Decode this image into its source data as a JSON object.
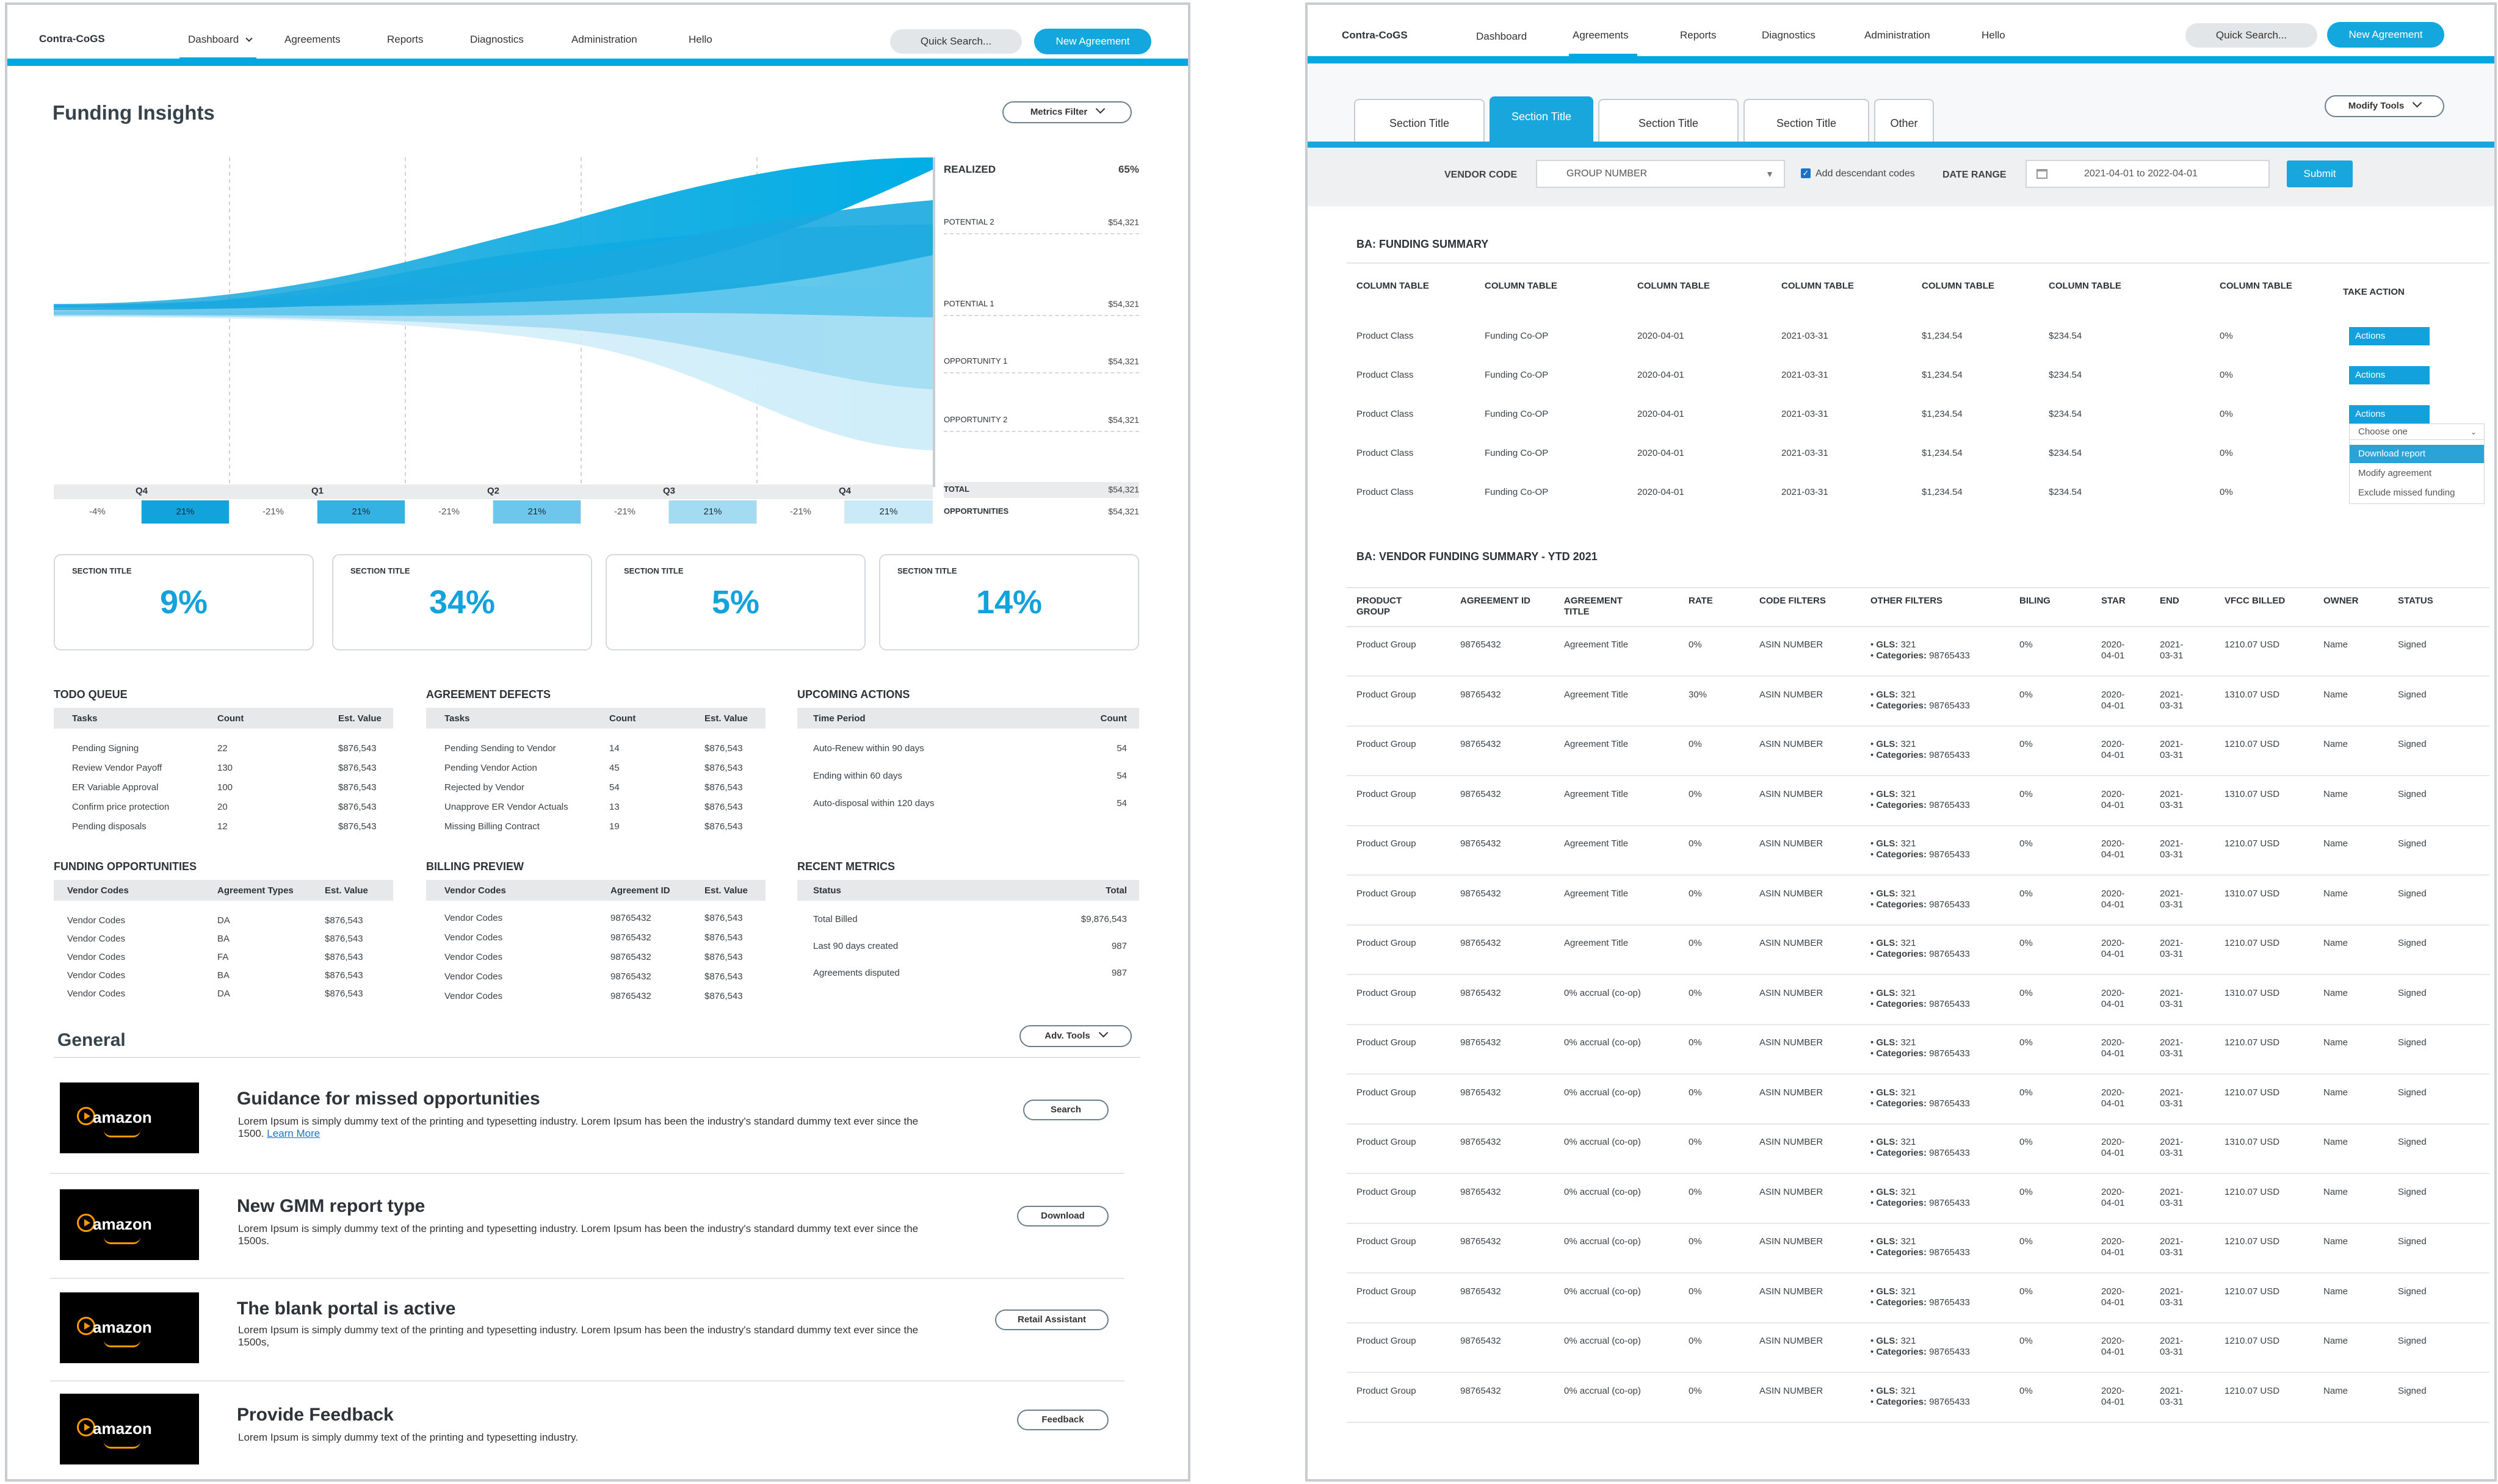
{
  "left": {
    "nav": {
      "brand": "Contra-CoGS",
      "items": [
        "Dashboard",
        "Agreements",
        "Reports",
        "Diagnostics",
        "Administration",
        "Hello"
      ],
      "search": "Quick Search...",
      "new_agreement": "New Agreement"
    },
    "page_title": "Funding Insights",
    "metrics_filter": "Metrics Filter",
    "chart_data": {
      "type": "area",
      "title": "",
      "x": [
        "Q4",
        "Q1",
        "Q2",
        "Q3",
        "Q4"
      ],
      "series": [
        {
          "name": "REALIZED",
          "value": "65%"
        },
        {
          "name": "POTENTIAL 2",
          "value": "$54,321"
        },
        {
          "name": "POTENTIAL 1",
          "value": "$54,321"
        },
        {
          "name": "OPPORTUNITY 1",
          "value": "$54,321"
        },
        {
          "name": "OPPORTUNITY 2",
          "value": "$54,321"
        }
      ],
      "totals": [
        {
          "name": "TOTAL",
          "value": "$54,321"
        },
        {
          "name": "OPPORTUNITIES",
          "value": "$54,321"
        }
      ],
      "cells": [
        "-4%",
        "21%",
        "-21%",
        "21%",
        "-21%",
        "21%",
        "-21%",
        "21%",
        "-21%",
        "21%"
      ]
    },
    "cards": [
      {
        "label": "SECTION TITLE",
        "value": "9%"
      },
      {
        "label": "SECTION TITLE",
        "value": "34%"
      },
      {
        "label": "SECTION TITLE",
        "value": "5%"
      },
      {
        "label": "SECTION TITLE",
        "value": "14%"
      }
    ],
    "todo": {
      "title": "TODO QUEUE",
      "headers": [
        "Tasks",
        "Count",
        "Est. Value"
      ],
      "rows": [
        [
          "Pending Signing",
          "22",
          "$876,543"
        ],
        [
          "Review Vendor Payoff",
          "130",
          "$876,543"
        ],
        [
          "ER Variable Approval",
          "100",
          "$876,543"
        ],
        [
          "Confirm price protection",
          "20",
          "$876,543"
        ],
        [
          "Pending disposals",
          "12",
          "$876,543"
        ]
      ]
    },
    "defects": {
      "title": "AGREEMENT DEFECTS",
      "headers": [
        "Tasks",
        "Count",
        "Est. Value"
      ],
      "rows": [
        [
          "Pending Sending to Vendor",
          "14",
          "$876,543"
        ],
        [
          "Pending Vendor Action",
          "45",
          "$876,543"
        ],
        [
          "Rejected by Vendor",
          "54",
          "$876,543"
        ],
        [
          "Unapprove ER Vendor Actuals",
          "13",
          "$876,543"
        ],
        [
          "Missing Billing Contract",
          "19",
          "$876,543"
        ]
      ]
    },
    "upcoming": {
      "title": "UPCOMING ACTIONS",
      "headers": [
        "Time Period",
        "Count"
      ],
      "rows": [
        [
          "Auto-Renew within 90 days",
          "54"
        ],
        [
          "Ending within 60 days",
          "54"
        ],
        [
          "Auto-disposal within 120 days",
          "54"
        ]
      ]
    },
    "funding": {
      "title": "FUNDING OPPORTUNITIES",
      "headers": [
        "Vendor Codes",
        "Agreement Types",
        "Est. Value"
      ],
      "rows": [
        [
          "Vendor Codes",
          "DA",
          "$876,543"
        ],
        [
          "Vendor Codes",
          "BA",
          "$876,543"
        ],
        [
          "Vendor Codes",
          "FA",
          "$876,543"
        ],
        [
          "Vendor Codes",
          "BA",
          "$876,543"
        ],
        [
          "Vendor Codes",
          "DA",
          "$876,543"
        ]
      ]
    },
    "billing": {
      "title": "BILLING PREVIEW",
      "headers": [
        "Vendor Codes",
        "Agreement ID",
        "Est. Value"
      ],
      "rows": [
        [
          "Vendor Codes",
          "98765432",
          "$876,543"
        ],
        [
          "Vendor Codes",
          "98765432",
          "$876,543"
        ],
        [
          "Vendor Codes",
          "98765432",
          "$876,543"
        ],
        [
          "Vendor Codes",
          "98765432",
          "$876,543"
        ],
        [
          "Vendor Codes",
          "98765432",
          "$876,543"
        ]
      ]
    },
    "recent": {
      "title": "RECENT METRICS",
      "headers": [
        "Status",
        "Total"
      ],
      "rows": [
        [
          "Total Billed",
          "$9,876,543"
        ],
        [
          "Last 90 days created",
          "987"
        ],
        [
          "Agreements disputed",
          "987"
        ]
      ]
    },
    "general": {
      "title": "General",
      "adv_tools": "Adv. Tools",
      "logo_text": "amazon",
      "items": [
        {
          "title": "Guidance for missed opportunities",
          "desc": "Lorem Ipsum is simply dummy text of the printing and typesetting industry. Lorem Ipsum has been the industry's standard dummy text ever since the 1500.",
          "link": "Learn More",
          "button": "Search"
        },
        {
          "title": "New GMM report type",
          "desc": "Lorem Ipsum is simply dummy text of the printing and typesetting industry. Lorem Ipsum has been the industry's standard dummy text ever since the 1500s.",
          "link": "",
          "button": "Download"
        },
        {
          "title": "The blank portal is active",
          "desc": "Lorem Ipsum is simply dummy text of the printing and typesetting industry. Lorem Ipsum has been the industry's standard dummy text ever since the 1500s,",
          "link": "",
          "button": "Retail Assistant"
        },
        {
          "title": "Provide Feedback",
          "desc": "Lorem Ipsum is simply dummy text of the printing and typesetting industry.",
          "link": "",
          "button": "Feedback"
        }
      ]
    }
  },
  "right": {
    "nav": {
      "brand": "Contra-CoGS",
      "items": [
        "Dashboard",
        "Agreements",
        "Reports",
        "Diagnostics",
        "Administration",
        "Hello"
      ],
      "search": "Quick Search...",
      "new_agreement": "New Agreement"
    },
    "tabs": [
      "Section Title",
      "Section Title",
      "Section Title",
      "Section Title",
      "Other"
    ],
    "modify_tools": "Modify Tools",
    "filter": {
      "vendor_code_label": "VENDOR CODE",
      "vendor_code_value": "GROUP NUMBER",
      "descendant_label": "Add descendant codes",
      "date_label": "DATE RANGE",
      "date_value": "2021-04-01 to 2022-04-01",
      "submit": "Submit"
    },
    "funding_summary": {
      "title": "BA: FUNDING SUMMARY",
      "headers": [
        "COLUMN TABLE",
        "COLUMN TABLE",
        "COLUMN TABLE",
        "COLUMN TABLE",
        "COLUMN TABLE",
        "COLUMN TABLE",
        "COLUMN TABLE",
        "TAKE ACTION"
      ],
      "rows": [
        [
          "Product Class",
          "Funding Co-OP",
          "2020-04-01",
          "2021-03-31",
          "$1,234.54",
          "$234.54",
          "0%",
          "Actions"
        ],
        [
          "Product Class",
          "Funding Co-OP",
          "2020-04-01",
          "2021-03-31",
          "$1,234.54",
          "$234.54",
          "0%",
          "Actions"
        ],
        [
          "Product Class",
          "Funding Co-OP",
          "2020-04-01",
          "2021-03-31",
          "$1,234.54",
          "$234.54",
          "0%",
          "Actions"
        ],
        [
          "Product Class",
          "Funding Co-OP",
          "2020-04-01",
          "2021-03-31",
          "$1,234.54",
          "$234.54",
          "0%",
          ""
        ],
        [
          "Product Class",
          "Funding Co-OP",
          "2020-04-01",
          "2021-03-31",
          "$1,234.54",
          "$234.54",
          "0%",
          ""
        ]
      ],
      "dropdown": {
        "placeholder": "Choose one",
        "options": [
          "Download report",
          "Modify agreement",
          "Exclude missed funding"
        ]
      }
    },
    "vendor_summary": {
      "title": "BA: VENDOR FUNDING SUMMARY - YTD 2021",
      "headers": [
        "PRODUCT GROUP",
        "AGREEMENT ID",
        "AGREEMENT TITLE",
        "RATE",
        "CODE FILTERS",
        "OTHER FILTERS",
        "BILING",
        "STAR",
        "END",
        "VFCC BILLED",
        "OWNER",
        "STATUS"
      ],
      "gls_label": "GLS:",
      "cat_label": "Categories:",
      "rows": [
        {
          "group": "Product Group",
          "id": "98765432",
          "title": "Agreement Title",
          "rate": "0%",
          "code": "ASIN NUMBER",
          "gls": "321",
          "cat": "98765433",
          "billing": "0%",
          "star": "2020-04-01",
          "end": "2021-03-31",
          "vfcc": "1210.07 USD",
          "owner": "Name",
          "status": "Signed"
        },
        {
          "group": "Product Group",
          "id": "98765432",
          "title": "Agreement Title",
          "rate": "30%",
          "code": "ASIN NUMBER",
          "gls": "321",
          "cat": "98765433",
          "billing": "0%",
          "star": "2020-04-01",
          "end": "2021-03-31",
          "vfcc": "1310.07 USD",
          "owner": "Name",
          "status": "Signed"
        },
        {
          "group": "Product Group",
          "id": "98765432",
          "title": "Agreement Title",
          "rate": "0%",
          "code": "ASIN NUMBER",
          "gls": "321",
          "cat": "98765433",
          "billing": "0%",
          "star": "2020-04-01",
          "end": "2021-03-31",
          "vfcc": "1210.07 USD",
          "owner": "Name",
          "status": "Signed"
        },
        {
          "group": "Product Group",
          "id": "98765432",
          "title": "Agreement Title",
          "rate": "0%",
          "code": "ASIN NUMBER",
          "gls": "321",
          "cat": "98765433",
          "billing": "0%",
          "star": "2020-04-01",
          "end": "2021-03-31",
          "vfcc": "1310.07 USD",
          "owner": "Name",
          "status": "Signed"
        },
        {
          "group": "Product Group",
          "id": "98765432",
          "title": "Agreement Title",
          "rate": "0%",
          "code": "ASIN NUMBER",
          "gls": "321",
          "cat": "98765433",
          "billing": "0%",
          "star": "2020-04-01",
          "end": "2021-03-31",
          "vfcc": "1210.07 USD",
          "owner": "Name",
          "status": "Signed"
        },
        {
          "group": "Product Group",
          "id": "98765432",
          "title": "Agreement Title",
          "rate": "0%",
          "code": "ASIN NUMBER",
          "gls": "321",
          "cat": "98765433",
          "billing": "0%",
          "star": "2020-04-01",
          "end": "2021-03-31",
          "vfcc": "1310.07 USD",
          "owner": "Name",
          "status": "Signed"
        },
        {
          "group": "Product Group",
          "id": "98765432",
          "title": "Agreement Title",
          "rate": "0%",
          "code": "ASIN NUMBER",
          "gls": "321",
          "cat": "98765433",
          "billing": "0%",
          "star": "2020-04-01",
          "end": "2021-03-31",
          "vfcc": "1210.07 USD",
          "owner": "Name",
          "status": "Signed"
        },
        {
          "group": "Product Group",
          "id": "98765432",
          "title": "0% accrual (co-op)",
          "rate": "0%",
          "code": "ASIN NUMBER",
          "gls": "321",
          "cat": "98765433",
          "billing": "0%",
          "star": "2020-04-01",
          "end": "2021-03-31",
          "vfcc": "1310.07 USD",
          "owner": "Name",
          "status": "Signed"
        },
        {
          "group": "Product Group",
          "id": "98765432",
          "title": "0% accrual (co-op)",
          "rate": "0%",
          "code": "ASIN NUMBER",
          "gls": "321",
          "cat": "98765433",
          "billing": "0%",
          "star": "2020-04-01",
          "end": "2021-03-31",
          "vfcc": "1210.07 USD",
          "owner": "Name",
          "status": "Signed"
        },
        {
          "group": "Product Group",
          "id": "98765432",
          "title": "0% accrual (co-op)",
          "rate": "0%",
          "code": "ASIN NUMBER",
          "gls": "321",
          "cat": "98765433",
          "billing": "0%",
          "star": "2020-04-01",
          "end": "2021-03-31",
          "vfcc": "1210.07 USD",
          "owner": "Name",
          "status": "Signed"
        },
        {
          "group": "Product Group",
          "id": "98765432",
          "title": "0% accrual (co-op)",
          "rate": "0%",
          "code": "ASIN NUMBER",
          "gls": "321",
          "cat": "98765433",
          "billing": "0%",
          "star": "2020-04-01",
          "end": "2021-03-31",
          "vfcc": "1310.07 USD",
          "owner": "Name",
          "status": "Signed"
        },
        {
          "group": "Product Group",
          "id": "98765432",
          "title": "0% accrual (co-op)",
          "rate": "0%",
          "code": "ASIN NUMBER",
          "gls": "321",
          "cat": "98765433",
          "billing": "0%",
          "star": "2020-04-01",
          "end": "2021-03-31",
          "vfcc": "1210.07 USD",
          "owner": "Name",
          "status": "Signed"
        },
        {
          "group": "Product Group",
          "id": "98765432",
          "title": "0% accrual (co-op)",
          "rate": "0%",
          "code": "ASIN NUMBER",
          "gls": "321",
          "cat": "98765433",
          "billing": "0%",
          "star": "2020-04-01",
          "end": "2021-03-31",
          "vfcc": "1210.07 USD",
          "owner": "Name",
          "status": "Signed"
        },
        {
          "group": "Product Group",
          "id": "98765432",
          "title": "0% accrual (co-op)",
          "rate": "0%",
          "code": "ASIN NUMBER",
          "gls": "321",
          "cat": "98765433",
          "billing": "0%",
          "star": "2020-04-01",
          "end": "2021-03-31",
          "vfcc": "1210.07 USD",
          "owner": "Name",
          "status": "Signed"
        },
        {
          "group": "Product Group",
          "id": "98765432",
          "title": "0% accrual (co-op)",
          "rate": "0%",
          "code": "ASIN NUMBER",
          "gls": "321",
          "cat": "98765433",
          "billing": "0%",
          "star": "2020-04-01",
          "end": "2021-03-31",
          "vfcc": "1210.07 USD",
          "owner": "Name",
          "status": "Signed"
        },
        {
          "group": "Product Group",
          "id": "98765432",
          "title": "0% accrual (co-op)",
          "rate": "0%",
          "code": "ASIN NUMBER",
          "gls": "321",
          "cat": "98765433",
          "billing": "0%",
          "star": "2020-04-01",
          "end": "2021-03-31",
          "vfcc": "1210.07 USD",
          "owner": "Name",
          "status": "Signed"
        }
      ]
    }
  }
}
